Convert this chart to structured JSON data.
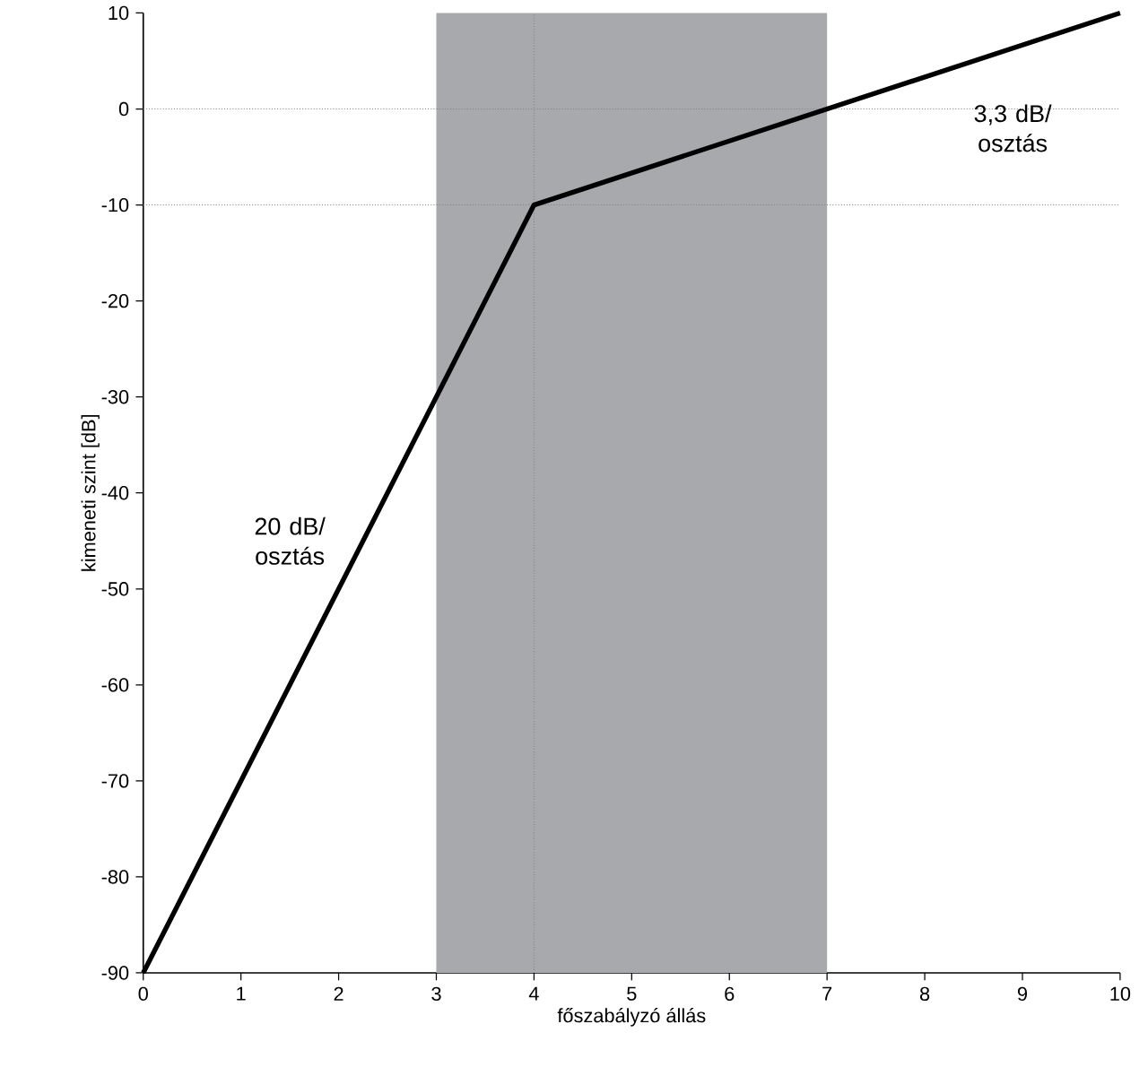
{
  "chart_data": {
    "type": "line",
    "xlabel": "főszabályzó állás",
    "ylabel": "kimeneti szint [dB]",
    "x": [
      0,
      4,
      10
    ],
    "values": [
      -90,
      -10,
      10
    ],
    "color": "#000000",
    "marker": "none",
    "line_style": "solid",
    "grid": false,
    "xlim": [
      0,
      10
    ],
    "xticks": [
      0,
      1,
      2,
      3,
      4,
      5,
      6,
      7,
      8,
      9,
      10
    ],
    "ylim": [
      -90,
      10
    ],
    "yticks": [
      -90,
      -80,
      -70,
      -60,
      -50,
      -40,
      -30,
      -20,
      -10,
      0,
      10
    ],
    "bands": [
      {
        "axis": "x",
        "from": 3,
        "to": 7,
        "color": "#a7a9ac"
      }
    ],
    "ref_lines": [
      {
        "axis": "y",
        "value": 0,
        "color": "#808080",
        "line_style": "dotted"
      },
      {
        "axis": "y",
        "value": -10,
        "color": "#808080",
        "line_style": "dotted"
      },
      {
        "axis": "x",
        "value": 4,
        "color": "#808080",
        "line_style": "dotted"
      }
    ],
    "annotations": [
      "20 dB/ osztás",
      "3,3 dB/ osztás"
    ]
  }
}
